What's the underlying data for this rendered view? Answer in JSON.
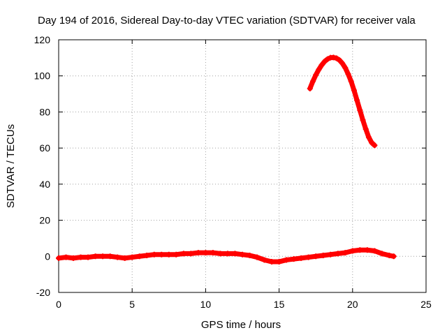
{
  "chart_data": {
    "type": "scatter",
    "title": "Day 194 of 2016, Sidereal Day-to-day VTEC variation (SDTVAR) for receiver vala",
    "xlabel": "GPS time / hours",
    "ylabel": "SDTVAR / TECUs",
    "xlim": [
      0,
      25
    ],
    "ylim": [
      -20,
      120
    ],
    "xticks": [
      "0",
      "5",
      "10",
      "15",
      "20",
      "25"
    ],
    "yticks": [
      "-20",
      "0",
      "20",
      "40",
      "60",
      "80",
      "100",
      "120"
    ],
    "grid": true,
    "marker": "plus",
    "series": [
      {
        "name": "near-zero",
        "color": "#ff0000",
        "x": [
          0,
          0.5,
          1,
          1.5,
          2,
          2.5,
          3,
          3.5,
          4,
          4.5,
          5,
          5.5,
          6,
          6.5,
          7,
          7.5,
          8,
          8.5,
          9,
          9.5,
          10,
          10.5,
          11,
          11.5,
          12,
          12.5,
          13,
          13.5,
          14,
          14.5,
          15,
          15.5,
          16,
          16.5,
          17,
          17.5,
          18,
          18.5,
          19,
          19.5,
          20,
          20.5,
          21,
          21.5,
          22,
          22.5,
          22.8
        ],
        "y": [
          -1,
          -0.5,
          -1,
          -0.5,
          -0.5,
          0,
          0,
          0,
          -0.5,
          -1,
          -0.5,
          0,
          0.5,
          1,
          1,
          1,
          1,
          1.5,
          1.5,
          2,
          2,
          2,
          1.5,
          1.5,
          1.5,
          1,
          0.5,
          -0.5,
          -2,
          -3,
          -3,
          -2,
          -1.5,
          -1,
          -0.5,
          0,
          0.5,
          1,
          1.5,
          2,
          3,
          3.5,
          3.5,
          3,
          1.5,
          0.5,
          0
        ]
      },
      {
        "name": "arc",
        "color": "#ff0000",
        "x": [
          17.1,
          17.3,
          17.5,
          17.7,
          17.9,
          18.1,
          18.3,
          18.5,
          18.7,
          18.9,
          19.1,
          19.3,
          19.5,
          19.7,
          19.9,
          20.1,
          20.3,
          20.5,
          20.7,
          20.9,
          21.1,
          21.3,
          21.5
        ],
        "y": [
          93,
          97,
          100.5,
          103.5,
          106,
          108,
          109.3,
          110.1,
          110.2,
          109.8,
          108.8,
          107,
          104.5,
          101,
          97,
          92,
          86.5,
          81,
          75.5,
          70.5,
          66,
          63,
          61.5
        ]
      }
    ]
  }
}
